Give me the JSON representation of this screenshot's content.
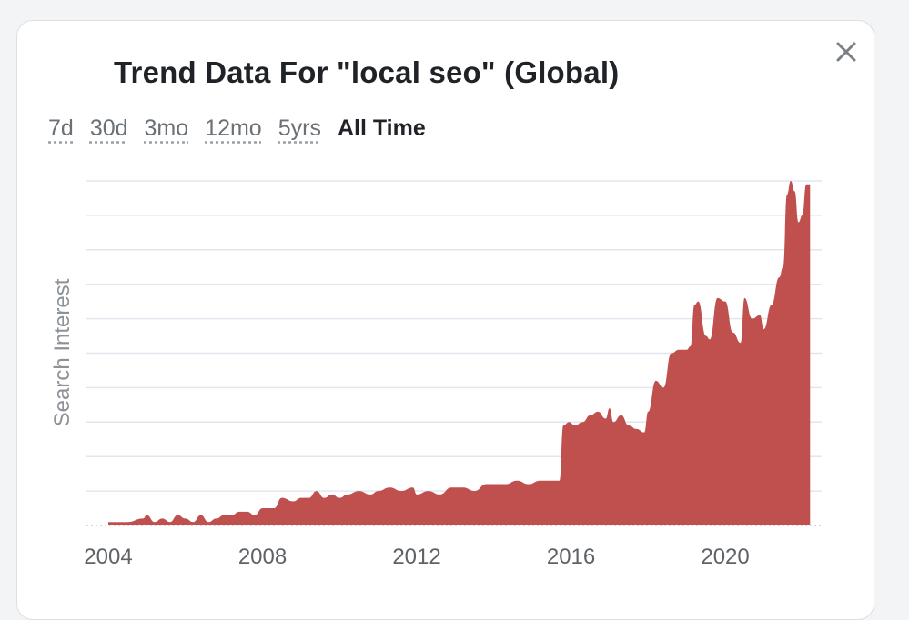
{
  "dialog": {
    "title": "Trend Data For \"local seo\" (Global)",
    "close_icon": "close-icon"
  },
  "ranges": [
    {
      "label": "7d",
      "active": false
    },
    {
      "label": "30d",
      "active": false
    },
    {
      "label": "3mo",
      "active": false
    },
    {
      "label": "12mo",
      "active": false
    },
    {
      "label": "5yrs",
      "active": false
    },
    {
      "label": "All Time",
      "active": true
    }
  ],
  "colors": {
    "area_fill": "#c0504d",
    "gridline": "#e3e6ef",
    "baseline_dots": "#c9ccd1"
  },
  "chart_data": {
    "type": "area",
    "title": "",
    "xlabel": "",
    "ylabel": "Search Interest",
    "x_ticks": [
      2004,
      2008,
      2012,
      2016,
      2020
    ],
    "xlim": [
      2004,
      2022.5
    ],
    "ylim": [
      0,
      100
    ],
    "grid": true,
    "gridlines_y": [
      10,
      20,
      30,
      40,
      50,
      60,
      70,
      80,
      90,
      100
    ],
    "series": [
      {
        "x": [
          2004.0,
          2004.5,
          2004.9,
          2005.0,
          2005.2,
          2005.4,
          2005.6,
          2005.8,
          2006.0,
          2006.2,
          2006.4,
          2006.6,
          2006.8,
          2007.0,
          2007.2,
          2007.4,
          2007.6,
          2007.8,
          2008.0,
          2008.3,
          2008.5,
          2008.8,
          2009.0,
          2009.2,
          2009.4,
          2009.6,
          2009.8,
          2010.0,
          2010.2,
          2010.5,
          2010.8,
          2011.0,
          2011.3,
          2011.6,
          2011.9,
          2012.0,
          2012.3,
          2012.6,
          2012.9,
          2013.2,
          2013.5,
          2013.8,
          2014.0,
          2014.3,
          2014.6,
          2014.9,
          2015.2,
          2015.5,
          2015.7,
          2015.8,
          2015.95,
          2016.1,
          2016.3,
          2016.5,
          2016.7,
          2016.9,
          2017.0,
          2017.1,
          2017.3,
          2017.5,
          2017.7,
          2017.9,
          2018.0,
          2018.2,
          2018.4,
          2018.6,
          2018.8,
          2019.0,
          2019.1,
          2019.2,
          2019.3,
          2019.5,
          2019.6,
          2019.8,
          2020.0,
          2020.2,
          2020.4,
          2020.5,
          2020.7,
          2020.9,
          2021.0,
          2021.2,
          2021.4,
          2021.5,
          2021.6,
          2021.7,
          2021.8,
          2021.9,
          2022.0,
          2022.1,
          2022.2
        ],
        "values": [
          1,
          1,
          2,
          3,
          1,
          2,
          1,
          3,
          2,
          1,
          3,
          1,
          2,
          3,
          3,
          4,
          4,
          3,
          5,
          5,
          8,
          7,
          8,
          8,
          10,
          8,
          9,
          8,
          9,
          10,
          9,
          10,
          11,
          10,
          11,
          9,
          10,
          9,
          11,
          11,
          10,
          12,
          12,
          12,
          13,
          12,
          13,
          13,
          13,
          29,
          30,
          29,
          30,
          32,
          33,
          31,
          34,
          30,
          32,
          29,
          28,
          27,
          33,
          42,
          40,
          50,
          51,
          51,
          52,
          64,
          65,
          55,
          54,
          66,
          65,
          56,
          53,
          66,
          60,
          61,
          57,
          64,
          72,
          75,
          96,
          100,
          97,
          88,
          90,
          99,
          99
        ],
        "name": ""
      }
    ]
  }
}
